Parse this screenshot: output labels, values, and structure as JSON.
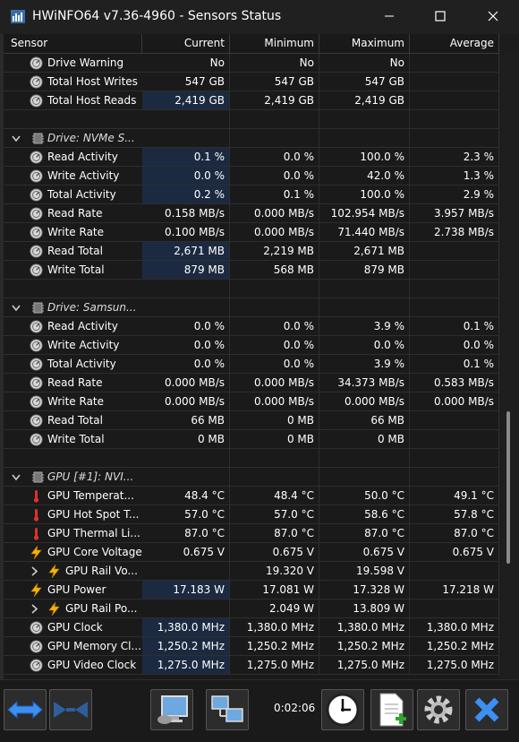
{
  "window": {
    "title": "HWiNFO64 v7.36-4960 - Sensors Status",
    "elapsed": "0:02:06"
  },
  "columns": [
    "Sensor",
    "Current",
    "Minimum",
    "Maximum",
    "Average"
  ],
  "rows": [
    {
      "type": "sensor",
      "icon": "disk-sensor-icon",
      "label": "Drive Warning",
      "cur": "No",
      "min": "No",
      "max": "No",
      "avg": ""
    },
    {
      "type": "sensor",
      "icon": "disk-sensor-icon",
      "label": "Total Host Writes",
      "cur": "547 GB",
      "min": "547 GB",
      "max": "547 GB",
      "avg": ""
    },
    {
      "type": "sensor",
      "icon": "disk-sensor-icon",
      "label": "Total Host Reads",
      "cur": "2,419 GB",
      "min": "2,419 GB",
      "max": "2,419 GB",
      "avg": "",
      "hl": true
    },
    {
      "type": "blank"
    },
    {
      "type": "group",
      "icon": "chip-icon",
      "label": "Drive: NVMe S..."
    },
    {
      "type": "sensor",
      "icon": "disk-sensor-icon",
      "label": "Read Activity",
      "cur": "0.1 %",
      "min": "0.0 %",
      "max": "100.0 %",
      "avg": "2.3 %",
      "hl": true
    },
    {
      "type": "sensor",
      "icon": "disk-sensor-icon",
      "label": "Write Activity",
      "cur": "0.0 %",
      "min": "0.0 %",
      "max": "42.0 %",
      "avg": "1.3 %",
      "hl": true
    },
    {
      "type": "sensor",
      "icon": "disk-sensor-icon",
      "label": "Total Activity",
      "cur": "0.2 %",
      "min": "0.1 %",
      "max": "100.0 %",
      "avg": "2.9 %",
      "hl": true
    },
    {
      "type": "sensor",
      "icon": "disk-sensor-icon",
      "label": "Read Rate",
      "cur": "0.158 MB/s",
      "min": "0.000 MB/s",
      "max": "102.954 MB/s",
      "avg": "3.957 MB/s"
    },
    {
      "type": "sensor",
      "icon": "disk-sensor-icon",
      "label": "Write Rate",
      "cur": "0.100 MB/s",
      "min": "0.000 MB/s",
      "max": "71.440 MB/s",
      "avg": "2.738 MB/s"
    },
    {
      "type": "sensor",
      "icon": "disk-sensor-icon",
      "label": "Read Total",
      "cur": "2,671 MB",
      "min": "2,219 MB",
      "max": "2,671 MB",
      "avg": "",
      "hl": true
    },
    {
      "type": "sensor",
      "icon": "disk-sensor-icon",
      "label": "Write Total",
      "cur": "879 MB",
      "min": "568 MB",
      "max": "879 MB",
      "avg": "",
      "hl": true
    },
    {
      "type": "blank"
    },
    {
      "type": "group",
      "icon": "chip-icon",
      "label": "Drive: Samsun..."
    },
    {
      "type": "sensor",
      "icon": "disk-sensor-icon",
      "label": "Read Activity",
      "cur": "0.0 %",
      "min": "0.0 %",
      "max": "3.9 %",
      "avg": "0.1 %"
    },
    {
      "type": "sensor",
      "icon": "disk-sensor-icon",
      "label": "Write Activity",
      "cur": "0.0 %",
      "min": "0.0 %",
      "max": "0.0 %",
      "avg": "0.0 %"
    },
    {
      "type": "sensor",
      "icon": "disk-sensor-icon",
      "label": "Total Activity",
      "cur": "0.0 %",
      "min": "0.0 %",
      "max": "3.9 %",
      "avg": "0.1 %"
    },
    {
      "type": "sensor",
      "icon": "disk-sensor-icon",
      "label": "Read Rate",
      "cur": "0.000 MB/s",
      "min": "0.000 MB/s",
      "max": "34.373 MB/s",
      "avg": "0.583 MB/s"
    },
    {
      "type": "sensor",
      "icon": "disk-sensor-icon",
      "label": "Write Rate",
      "cur": "0.000 MB/s",
      "min": "0.000 MB/s",
      "max": "0.000 MB/s",
      "avg": "0.000 MB/s"
    },
    {
      "type": "sensor",
      "icon": "disk-sensor-icon",
      "label": "Read Total",
      "cur": "66 MB",
      "min": "0 MB",
      "max": "66 MB",
      "avg": ""
    },
    {
      "type": "sensor",
      "icon": "disk-sensor-icon",
      "label": "Write Total",
      "cur": "0 MB",
      "min": "0 MB",
      "max": "0 MB",
      "avg": ""
    },
    {
      "type": "blank"
    },
    {
      "type": "group",
      "icon": "chip-icon",
      "label": "GPU [#1]: NVI..."
    },
    {
      "type": "sensor",
      "icon": "thermometer-icon",
      "label": "GPU Temperat...",
      "cur": "48.4 °C",
      "min": "48.4 °C",
      "max": "50.0 °C",
      "avg": "49.1 °C"
    },
    {
      "type": "sensor",
      "icon": "thermometer-icon",
      "label": "GPU Hot Spot T...",
      "cur": "57.0 °C",
      "min": "57.0 °C",
      "max": "58.6 °C",
      "avg": "57.8 °C"
    },
    {
      "type": "sensor",
      "icon": "thermometer-icon",
      "label": "GPU Thermal Li...",
      "cur": "87.0 °C",
      "min": "87.0 °C",
      "max": "87.0 °C",
      "avg": "87.0 °C"
    },
    {
      "type": "sensor",
      "icon": "lightning-icon",
      "label": "GPU Core Voltage",
      "cur": "0.675 V",
      "min": "0.675 V",
      "max": "0.675 V",
      "avg": "0.675 V"
    },
    {
      "type": "sub",
      "icon": "lightning-icon",
      "label": "GPU Rail Vo...",
      "cur": "",
      "min": "19.320 V",
      "max": "19.598 V",
      "avg": ""
    },
    {
      "type": "sensor",
      "icon": "lightning-icon",
      "label": "GPU Power",
      "cur": "17.183 W",
      "min": "17.081 W",
      "max": "17.328 W",
      "avg": "17.218 W",
      "hl": true
    },
    {
      "type": "sub",
      "icon": "lightning-icon",
      "label": "GPU Rail Po...",
      "cur": "",
      "min": "2.049 W",
      "max": "13.809 W",
      "avg": ""
    },
    {
      "type": "sensor",
      "icon": "clock-sensor-icon",
      "label": "GPU Clock",
      "cur": "1,380.0 MHz",
      "min": "1,380.0 MHz",
      "max": "1,380.0 MHz",
      "avg": "1,380.0 MHz",
      "hl": true
    },
    {
      "type": "sensor",
      "icon": "clock-sensor-icon",
      "label": "GPU Memory Cl...",
      "cur": "1,250.2 MHz",
      "min": "1,250.2 MHz",
      "max": "1,250.2 MHz",
      "avg": "1,250.2 MHz",
      "hl": true
    },
    {
      "type": "sensor",
      "icon": "clock-sensor-icon",
      "label": "GPU Video Clock",
      "cur": "1,275.0 MHz",
      "min": "1,275.0 MHz",
      "max": "1,275.0 MHz",
      "avg": "1,275.0 MHz",
      "hl": true
    }
  ],
  "toolbar": {
    "buttons": [
      "expand-arrows-icon",
      "collapse-arrows-icon",
      "network-computer-icon",
      "network-computers-icon",
      "clock-icon",
      "add-report-icon",
      "settings-gear-icon",
      "close-x-icon"
    ]
  }
}
